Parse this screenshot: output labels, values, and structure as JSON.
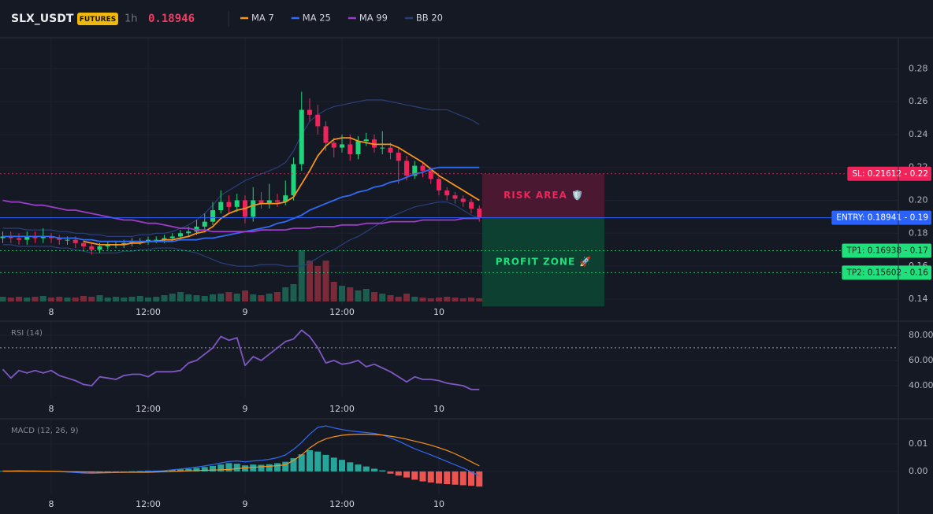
{
  "header": {
    "symbol": "SLX_USDT",
    "badge": "FUTURES",
    "interval": "1h",
    "price": "0.18946"
  },
  "chart_data": [
    {
      "type": "candlestick",
      "categories": [
        null,
        null,
        null,
        null,
        null,
        null,
        "8",
        null,
        null,
        null,
        null,
        null,
        null,
        null,
        null,
        null,
        null,
        null,
        "12:00",
        null,
        null,
        null,
        null,
        null,
        null,
        null,
        null,
        null,
        null,
        null,
        "9",
        null,
        null,
        null,
        null,
        null,
        null,
        null,
        null,
        null,
        null,
        null,
        "12:00",
        null,
        null,
        null,
        null,
        null,
        null,
        null,
        null,
        null,
        null,
        null,
        "10",
        null,
        null,
        null,
        null,
        null
      ],
      "open": [
        0.177,
        0.178,
        0.177,
        0.176,
        0.178,
        0.177,
        0.178,
        0.177,
        0.176,
        0.176,
        0.174,
        0.172,
        0.17,
        0.172,
        0.173,
        0.173,
        0.174,
        0.175,
        0.175,
        0.176,
        0.176,
        0.177,
        0.178,
        0.18,
        0.181,
        0.184,
        0.187,
        0.194,
        0.199,
        0.196,
        0.2,
        0.19,
        0.2,
        0.198,
        0.2,
        0.199,
        0.203,
        0.222,
        0.255,
        0.252,
        0.245,
        0.235,
        0.232,
        0.234,
        0.228,
        0.236,
        0.237,
        0.232,
        0.232,
        0.229,
        0.224,
        0.215,
        0.221,
        0.218,
        0.213,
        0.206,
        0.203,
        0.201,
        0.199,
        0.195
      ],
      "high": [
        0.181,
        0.181,
        0.18,
        0.181,
        0.181,
        0.183,
        0.18,
        0.179,
        0.178,
        0.178,
        0.176,
        0.174,
        0.174,
        0.175,
        0.175,
        0.176,
        0.177,
        0.177,
        0.178,
        0.178,
        0.179,
        0.18,
        0.182,
        0.184,
        0.188,
        0.192,
        0.199,
        0.206,
        0.203,
        0.204,
        0.203,
        0.208,
        0.205,
        0.21,
        0.204,
        0.212,
        0.226,
        0.266,
        0.262,
        0.258,
        0.248,
        0.238,
        0.24,
        0.24,
        0.239,
        0.241,
        0.24,
        0.242,
        0.235,
        0.232,
        0.227,
        0.224,
        0.223,
        0.22,
        0.215,
        0.208,
        0.205,
        0.203,
        0.201,
        0.197
      ],
      "low": [
        0.174,
        0.174,
        0.173,
        0.173,
        0.174,
        0.174,
        0.174,
        0.173,
        0.173,
        0.171,
        0.169,
        0.167,
        0.168,
        0.17,
        0.171,
        0.171,
        0.172,
        0.173,
        0.173,
        0.174,
        0.174,
        0.175,
        0.176,
        0.178,
        0.179,
        0.182,
        0.185,
        0.192,
        0.192,
        0.193,
        0.186,
        0.187,
        0.195,
        0.195,
        0.196,
        0.197,
        0.2,
        0.218,
        0.248,
        0.24,
        0.23,
        0.226,
        0.229,
        0.224,
        0.225,
        0.233,
        0.229,
        0.228,
        0.225,
        0.21,
        0.212,
        0.213,
        0.214,
        0.21,
        0.203,
        0.2,
        0.198,
        0.196,
        0.192,
        0.187
      ],
      "close": [
        0.178,
        0.177,
        0.176,
        0.178,
        0.177,
        0.178,
        0.177,
        0.176,
        0.176,
        0.174,
        0.172,
        0.17,
        0.172,
        0.173,
        0.173,
        0.174,
        0.175,
        0.175,
        0.176,
        0.176,
        0.177,
        0.178,
        0.18,
        0.181,
        0.184,
        0.187,
        0.194,
        0.199,
        0.196,
        0.2,
        0.19,
        0.2,
        0.198,
        0.2,
        0.199,
        0.203,
        0.222,
        0.255,
        0.252,
        0.245,
        0.235,
        0.232,
        0.234,
        0.228,
        0.236,
        0.237,
        0.232,
        0.232,
        0.229,
        0.224,
        0.215,
        0.221,
        0.218,
        0.213,
        0.206,
        0.203,
        0.201,
        0.199,
        0.195,
        0.1895
      ],
      "volume": [
        6,
        5,
        6,
        5,
        6,
        7,
        5,
        6,
        5,
        5,
        7,
        6,
        8,
        5,
        6,
        5,
        6,
        7,
        5,
        6,
        8,
        10,
        12,
        9,
        8,
        7,
        9,
        10,
        12,
        10,
        14,
        9,
        8,
        10,
        12,
        18,
        22,
        65,
        52,
        45,
        52,
        25,
        20,
        18,
        14,
        16,
        12,
        10,
        8,
        6,
        10,
        6,
        5,
        4,
        5,
        6,
        5,
        4,
        5,
        4
      ],
      "up_color": "#1fd47a",
      "down_color": "#f0245a",
      "volume_up_color": "#1b5e4f",
      "volume_down_color": "#7b2a3a",
      "series": [
        {
          "name": "MA 7",
          "color": "#f7931a",
          "values": [
            null,
            null,
            null,
            null,
            null,
            null,
            null,
            null,
            null,
            null,
            0.175,
            0.174,
            0.173,
            0.173,
            0.173,
            0.173,
            0.174,
            0.174,
            0.175,
            0.175,
            0.176,
            0.176,
            0.177,
            0.178,
            0.18,
            0.181,
            0.184,
            0.189,
            0.192,
            0.194,
            0.195,
            0.197,
            0.198,
            0.198,
            0.198,
            0.199,
            0.202,
            0.21,
            0.218,
            0.227,
            0.233,
            0.237,
            0.238,
            0.238,
            0.236,
            0.235,
            0.234,
            0.234,
            0.234,
            0.232,
            0.229,
            0.226,
            0.223,
            0.219,
            0.215,
            0.212,
            0.209,
            0.206,
            0.203,
            0.2
          ]
        },
        {
          "name": "MA 25",
          "color": "#2f6bf5",
          "values": [
            0.178,
            0.178,
            0.178,
            0.178,
            0.178,
            0.178,
            0.178,
            0.177,
            0.177,
            0.177,
            0.176,
            0.176,
            0.175,
            0.175,
            0.175,
            0.175,
            0.175,
            0.175,
            0.175,
            0.175,
            0.175,
            0.175,
            0.176,
            0.176,
            0.176,
            0.177,
            0.177,
            0.178,
            0.179,
            0.18,
            0.181,
            0.182,
            0.183,
            0.184,
            0.186,
            0.187,
            0.189,
            0.191,
            0.194,
            0.196,
            0.198,
            0.2,
            0.202,
            0.203,
            0.205,
            0.206,
            0.208,
            0.209,
            0.211,
            0.212,
            0.214,
            0.216,
            0.217,
            0.219,
            0.22,
            0.22,
            0.22,
            0.22,
            0.22,
            0.22
          ]
        },
        {
          "name": "MA 99",
          "color": "#9c3cc8",
          "values": [
            0.2,
            0.199,
            0.199,
            0.198,
            0.197,
            0.197,
            0.196,
            0.195,
            0.194,
            0.194,
            0.193,
            0.192,
            0.191,
            0.19,
            0.189,
            0.188,
            0.188,
            0.187,
            0.186,
            0.186,
            0.185,
            0.184,
            0.183,
            0.183,
            0.182,
            0.182,
            0.181,
            0.181,
            0.181,
            0.181,
            0.181,
            0.181,
            0.182,
            0.182,
            0.182,
            0.182,
            0.183,
            0.183,
            0.183,
            0.184,
            0.184,
            0.184,
            0.185,
            0.185,
            0.185,
            0.186,
            0.186,
            0.186,
            0.187,
            0.187,
            0.187,
            0.187,
            0.188,
            0.188,
            0.188,
            0.188,
            0.188,
            0.189,
            0.189,
            0.189
          ]
        },
        {
          "name": "BB 20",
          "color": "#2a3f7a",
          "upper": [
            0.183,
            0.183,
            0.183,
            0.182,
            0.182,
            0.182,
            0.182,
            0.181,
            0.181,
            0.18,
            0.18,
            0.179,
            0.179,
            0.178,
            0.178,
            0.178,
            0.178,
            0.179,
            0.179,
            0.18,
            0.18,
            0.181,
            0.183,
            0.185,
            0.188,
            0.192,
            0.197,
            0.203,
            0.206,
            0.209,
            0.212,
            0.214,
            0.216,
            0.218,
            0.22,
            0.223,
            0.23,
            0.24,
            0.248,
            0.252,
            0.255,
            0.257,
            0.258,
            0.259,
            0.26,
            0.261,
            0.261,
            0.261,
            0.26,
            0.259,
            0.258,
            0.257,
            0.256,
            0.255,
            0.255,
            0.255,
            0.253,
            0.251,
            0.249,
            0.246
          ],
          "lower": [
            0.173,
            0.173,
            0.172,
            0.172,
            0.172,
            0.172,
            0.172,
            0.171,
            0.171,
            0.17,
            0.169,
            0.168,
            0.168,
            0.168,
            0.168,
            0.169,
            0.169,
            0.17,
            0.17,
            0.171,
            0.171,
            0.171,
            0.17,
            0.169,
            0.168,
            0.166,
            0.164,
            0.162,
            0.161,
            0.16,
            0.16,
            0.16,
            0.161,
            0.161,
            0.161,
            0.16,
            0.16,
            0.16,
            0.162,
            0.165,
            0.168,
            0.17,
            0.173,
            0.176,
            0.178,
            0.181,
            0.184,
            0.187,
            0.19,
            0.192,
            0.194,
            0.196,
            0.197,
            0.198,
            0.199,
            0.199,
            0.197,
            0.194,
            0.191,
            0.189
          ]
        }
      ],
      "ylim": [
        0.1361,
        0.2988
      ],
      "yticks": [
        0.28,
        0.26,
        0.24,
        0.22,
        {
          "value": 0.2,
          "label": "0.20"
        },
        0.18,
        0.16,
        0.14
      ],
      "grid": true,
      "price_lines": [
        {
          "label": "SL: 0.21612 - 0.22",
          "value": 0.21612,
          "color": "#f0245a",
          "text_color": "#ffffff",
          "dash": true
        },
        {
          "label": "ENTRY: 0.18941 - 0.19",
          "value": 0.18941,
          "color": "#2962ff",
          "text_color": "#ffffff",
          "dash": false
        },
        {
          "label": "TP1: 0.16938 - 0.17",
          "value": 0.16938,
          "color": "#1fe07a",
          "text_color": "#0b2a1a",
          "dash": true
        },
        {
          "label": "TP2: 0.15602 - 0.16",
          "value": 0.15602,
          "color": "#1fe07a",
          "text_color": "#0b2a1a",
          "dash": true
        }
      ],
      "zones": [
        {
          "label": "RISK AREA 🛡️",
          "from": 0.21612,
          "to": 0.18941,
          "color": "#4a1830",
          "text_color": "#f0245a"
        },
        {
          "label": "PROFIT ZONE 🚀",
          "from": 0.18941,
          "to": 0.1355,
          "color": "#0e4032",
          "text_color": "#1fe07a"
        }
      ]
    },
    {
      "type": "line",
      "title": "RSI (14)",
      "categories": [
        null,
        null,
        null,
        null,
        null,
        null,
        "8",
        null,
        null,
        null,
        null,
        null,
        null,
        null,
        null,
        null,
        null,
        null,
        "12:00",
        null,
        null,
        null,
        null,
        null,
        null,
        null,
        null,
        null,
        null,
        null,
        "9",
        null,
        null,
        null,
        null,
        null,
        null,
        null,
        null,
        null,
        null,
        null,
        "12:00",
        null,
        null,
        null,
        null,
        null,
        null,
        null,
        null,
        null,
        null,
        null,
        "10",
        null,
        null,
        null,
        null,
        null
      ],
      "values": [
        53,
        46,
        52,
        50,
        52,
        50,
        52,
        48,
        46,
        44,
        41,
        40,
        47,
        46,
        45,
        48,
        49,
        49,
        47,
        51,
        51,
        51,
        52,
        58,
        60,
        65,
        70,
        79,
        76,
        78,
        56,
        63,
        60,
        65,
        70,
        75,
        77,
        84,
        79,
        70,
        58,
        60,
        57,
        58,
        60,
        55,
        57,
        54,
        51,
        47,
        43,
        47,
        45,
        45,
        44,
        42,
        41,
        40,
        37,
        37
      ],
      "color": "#7e57c2",
      "ylim": [
        30.6,
        91.2
      ],
      "yticks": [
        {
          "value": 80,
          "label": "80.00"
        },
        {
          "value": 60,
          "label": "60.00"
        },
        {
          "value": 40,
          "label": "40.00"
        }
      ],
      "hlines": [
        70
      ]
    },
    {
      "type": "macd",
      "title": "MACD (12, 26, 9)",
      "categories": [
        null,
        null,
        null,
        null,
        null,
        null,
        "8",
        null,
        null,
        null,
        null,
        null,
        null,
        null,
        null,
        null,
        null,
        null,
        "12:00",
        null,
        null,
        null,
        null,
        null,
        null,
        null,
        null,
        null,
        null,
        null,
        "9",
        null,
        null,
        null,
        null,
        null,
        null,
        null,
        null,
        null,
        null,
        null,
        "12:00",
        null,
        null,
        null,
        null,
        null,
        null,
        null,
        null,
        null,
        null,
        null,
        "10",
        null,
        null,
        null,
        null,
        null
      ],
      "histogram": [
        0.0002,
        0.0001,
        0.0002,
        0.0001,
        0.0002,
        0.0002,
        0.0001,
        0,
        -0.0002,
        -0.0003,
        -0.0004,
        -0.0005,
        -0.0003,
        -0.0002,
        -0.0001,
        0,
        0.0001,
        0.0002,
        0.0003,
        0.0003,
        0.0004,
        0.0006,
        0.0008,
        0.001,
        0.0013,
        0.0016,
        0.002,
        0.0025,
        0.003,
        0.0028,
        0.0022,
        0.0025,
        0.0024,
        0.0026,
        0.003,
        0.0035,
        0.0048,
        0.0062,
        0.0077,
        0.0072,
        0.006,
        0.005,
        0.0042,
        0.0033,
        0.0025,
        0.0018,
        0.001,
        0.0004,
        -0.0008,
        -0.0015,
        -0.0022,
        -0.003,
        -0.0036,
        -0.004,
        -0.0044,
        -0.0046,
        -0.0048,
        -0.005,
        -0.0052,
        -0.0055
      ],
      "macd": [
        0.0002,
        0.0002,
        0.0003,
        0.0002,
        0.0002,
        0.0001,
        0.0001,
        0,
        -0.0002,
        -0.0004,
        -0.0006,
        -0.0007,
        -0.0006,
        -0.0005,
        -0.0004,
        -0.0003,
        -0.0002,
        -0.0001,
        0,
        0.0001,
        0.0003,
        0.0006,
        0.0009,
        0.0012,
        0.0016,
        0.002,
        0.0025,
        0.0031,
        0.0036,
        0.0038,
        0.0035,
        0.0038,
        0.004,
        0.0044,
        0.005,
        0.006,
        0.008,
        0.0105,
        0.0135,
        0.016,
        0.0165,
        0.0158,
        0.0152,
        0.0147,
        0.0144,
        0.0141,
        0.0138,
        0.0132,
        0.0122,
        0.011,
        0.0096,
        0.0082,
        0.0071,
        0.006,
        0.0048,
        0.0036,
        0.0024,
        0.0012,
        -0.0002,
        -0.0016
      ],
      "signal": [
        0.0001,
        0.0001,
        0.0001,
        0.0001,
        0.0001,
        0.0001,
        0.0001,
        0,
        -0.0001,
        -0.0001,
        -0.0002,
        -0.0002,
        -0.0003,
        -0.0003,
        -0.0003,
        -0.0003,
        -0.0003,
        -0.0003,
        -0.0003,
        -0.0002,
        -0.0001,
        0,
        0.0001,
        0.0002,
        0.0003,
        0.0004,
        0.0005,
        0.0006,
        0.0007,
        0.001,
        0.0013,
        0.0015,
        0.0017,
        0.0019,
        0.0021,
        0.0024,
        0.004,
        0.006,
        0.0085,
        0.0105,
        0.0118,
        0.0126,
        0.0131,
        0.0134,
        0.0135,
        0.0135,
        0.0134,
        0.0132,
        0.0128,
        0.0123,
        0.0117,
        0.011,
        0.0103,
        0.0095,
        0.0086,
        0.0076,
        0.0064,
        0.005,
        0.0035,
        0.002
      ],
      "macd_color": "#2f6bf5",
      "signal_color": "#f7931a",
      "hist_up_color": "#26a69a",
      "hist_down_color": "#ef5350",
      "ylim": [
        -0.0083,
        0.0191
      ],
      "yticks": [
        0.01,
        {
          "value": 0,
          "label": "0.00"
        }
      ]
    }
  ]
}
